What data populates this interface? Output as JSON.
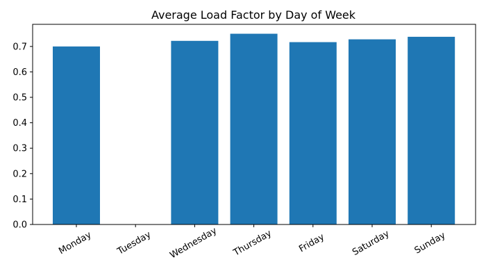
{
  "chart_data": {
    "type": "bar",
    "title": "Average Load Factor by Day of Week",
    "xlabel": "",
    "ylabel": "",
    "categories": [
      "Monday",
      "Tuesday",
      "Wednesday",
      "Thursday",
      "Friday",
      "Saturday",
      "Sunday"
    ],
    "values": [
      0.7,
      0.0,
      0.722,
      0.75,
      0.717,
      0.728,
      0.738
    ],
    "ylim": [
      0,
      0.787
    ],
    "yticks": [
      "0.0",
      "0.1",
      "0.2",
      "0.3",
      "0.4",
      "0.5",
      "0.6",
      "0.7"
    ],
    "bar_color": "#1f77b4",
    "grid": false,
    "legend": false
  }
}
